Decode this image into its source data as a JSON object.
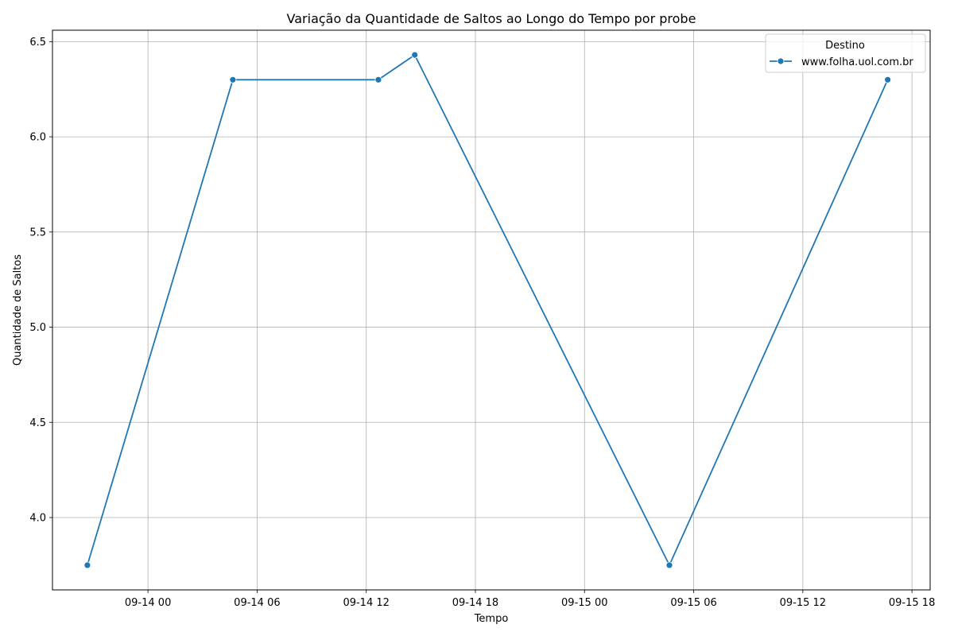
{
  "chart_data": {
    "type": "line",
    "title": "Variação da Quantidade de Saltos ao Longo do Tempo por probe",
    "xlabel": "Tempo",
    "ylabel": "Quantidade de Saltos",
    "x_ticks": [
      "09-14 00",
      "09-14 06",
      "09-14 12",
      "09-14 18",
      "09-15 00",
      "09-15 06",
      "09-15 12",
      "09-15 18"
    ],
    "y_ticks": [
      "4.0",
      "4.5",
      "5.0",
      "5.5",
      "6.0",
      "6.5"
    ],
    "x_range": [
      "2024-09-13 18:45",
      "2024-09-15 19:00"
    ],
    "ylim": [
      3.62,
      6.56
    ],
    "grid": true,
    "legend": {
      "title": "Destino",
      "position": "top-right"
    },
    "series": [
      {
        "name": "www.folha.uol.com.br",
        "color": "#1f77b4",
        "marker": "circle",
        "points": [
          {
            "x": "2024-09-13 20:40",
            "y": 3.75
          },
          {
            "x": "2024-09-14 04:40",
            "y": 6.3
          },
          {
            "x": "2024-09-14 12:40",
            "y": 6.3
          },
          {
            "x": "2024-09-14 14:40",
            "y": 6.43
          },
          {
            "x": "2024-09-15 04:40",
            "y": 3.75
          },
          {
            "x": "2024-09-15 16:40",
            "y": 6.3
          }
        ]
      }
    ]
  }
}
